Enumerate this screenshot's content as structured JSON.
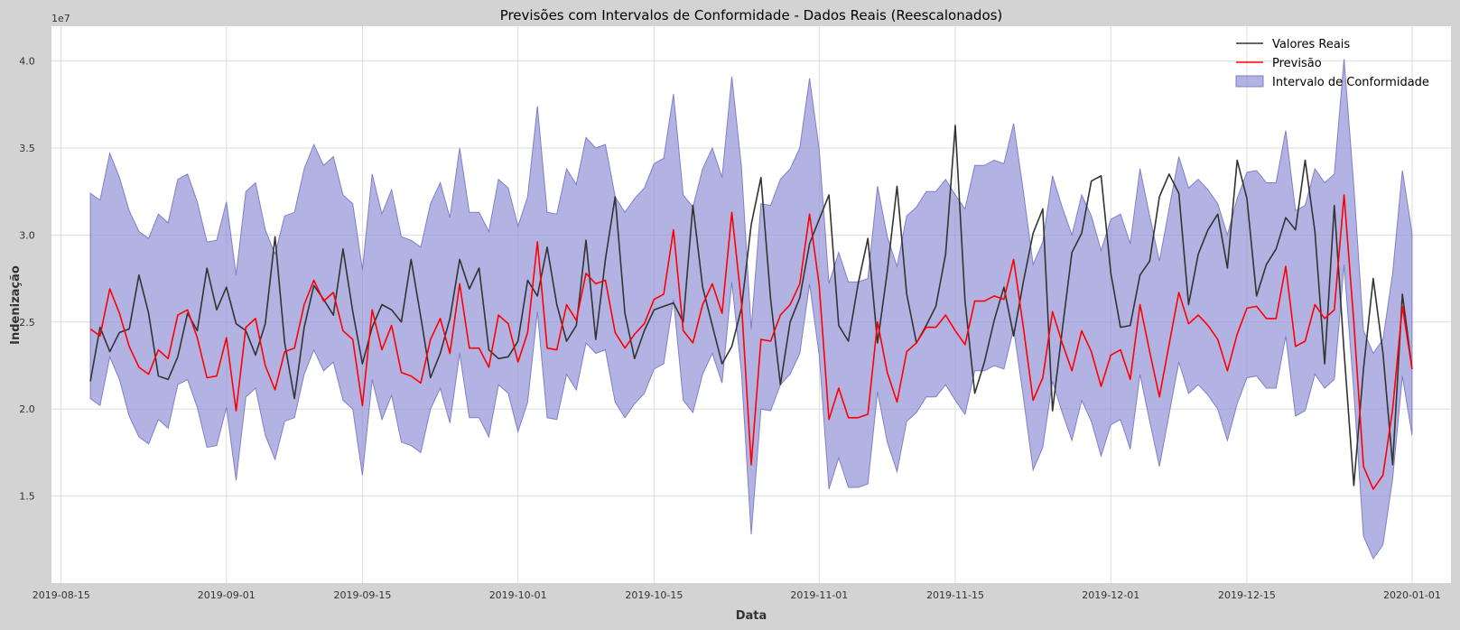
{
  "chart_data": {
    "type": "line",
    "title": "Previsões com Intervalos de Conformidade - Dados Reais (Reescalonados)",
    "xlabel": "Data",
    "ylabel": "Indenização",
    "y_offset_label": "1e7",
    "xlim": [
      "2019-08-14",
      "2020-01-05"
    ],
    "ylim": [
      1.0,
      4.2
    ],
    "x_ticks": [
      "2019-08-15",
      "2019-09-01",
      "2019-09-15",
      "2019-10-01",
      "2019-10-15",
      "2019-11-01",
      "2019-11-15",
      "2019-12-01",
      "2019-12-15",
      "2020-01-01"
    ],
    "x_tick_labels": [
      "2019-08-15",
      "2019-09-01",
      "2019-09-15",
      "2019-10-01",
      "2019-10-15",
      "2019-11-01",
      "2019-11-15",
      "2019-12-01",
      "2019-12-15",
      "2020-01-01"
    ],
    "y_ticks": [
      1.5,
      2.0,
      2.5,
      3.0,
      3.5,
      4.0
    ],
    "y_tick_labels": [
      "1.5",
      "2.0",
      "2.5",
      "3.0",
      "3.5",
      "4.0"
    ],
    "grid": true,
    "legend_position": "top-right",
    "start_date": "2019-08-18",
    "series": [
      {
        "name": "Valores Reais",
        "color": "#333333",
        "values": [
          2.16,
          2.47,
          2.33,
          2.44,
          2.46,
          2.77,
          2.55,
          2.19,
          2.17,
          2.3,
          2.55,
          2.45,
          2.81,
          2.57,
          2.7,
          2.49,
          2.45,
          2.31,
          2.49,
          2.99,
          2.38,
          2.06,
          2.47,
          2.71,
          2.63,
          2.54,
          2.92,
          2.56,
          2.26,
          2.47,
          2.6,
          2.57,
          2.5,
          2.86,
          2.53,
          2.18,
          2.32,
          2.52,
          2.86,
          2.69,
          2.81,
          2.34,
          2.29,
          2.3,
          2.39,
          2.74,
          2.65,
          2.93,
          2.6,
          2.39,
          2.48,
          2.97,
          2.4,
          2.86,
          3.22,
          2.55,
          2.29,
          2.45,
          2.57,
          2.59,
          2.61,
          2.5,
          3.17,
          2.7,
          2.48,
          2.26,
          2.36,
          2.58,
          3.06,
          3.33,
          2.63,
          2.14,
          2.5,
          2.64,
          2.95,
          3.09,
          3.23,
          2.48,
          2.39,
          2.72,
          2.98,
          2.38,
          2.79,
          3.28,
          2.66,
          2.38,
          2.48,
          2.59,
          2.89,
          3.63,
          2.62,
          2.09,
          2.27,
          2.51,
          2.7,
          2.42,
          2.73,
          3.01,
          3.15,
          1.99,
          2.45,
          2.9,
          3.01,
          3.31,
          3.34,
          2.78,
          2.47,
          2.48,
          2.77,
          2.85,
          3.22,
          3.35,
          3.24,
          2.6,
          2.89,
          3.03,
          3.12,
          2.81,
          3.43,
          3.21,
          2.65,
          2.83,
          2.92,
          3.1,
          3.03,
          3.43,
          3.02,
          2.26,
          3.17,
          2.33,
          1.56,
          2.23,
          2.75,
          2.32,
          1.68,
          2.66,
          2.23
        ]
      },
      {
        "name": "Previsão",
        "color": "#ff0000",
        "values": [
          2.46,
          2.42,
          2.69,
          2.55,
          2.36,
          2.24,
          2.2,
          2.34,
          2.29,
          2.54,
          2.57,
          2.41,
          2.18,
          2.19,
          2.41,
          1.99,
          2.47,
          2.52,
          2.25,
          2.11,
          2.33,
          2.35,
          2.6,
          2.74,
          2.62,
          2.67,
          2.45,
          2.4,
          2.02,
          2.57,
          2.34,
          2.48,
          2.21,
          2.19,
          2.15,
          2.4,
          2.52,
          2.32,
          2.72,
          2.35,
          2.35,
          2.24,
          2.54,
          2.49,
          2.27,
          2.44,
          2.96,
          2.35,
          2.34,
          2.6,
          2.51,
          2.78,
          2.72,
          2.74,
          2.44,
          2.35,
          2.43,
          2.49,
          2.63,
          2.66,
          3.03,
          2.45,
          2.38,
          2.6,
          2.72,
          2.55,
          3.13,
          2.61,
          1.68,
          2.4,
          2.39,
          2.54,
          2.6,
          2.72,
          3.12,
          2.71,
          1.94,
          2.12,
          1.95,
          1.95,
          1.97,
          2.5,
          2.21,
          2.04,
          2.33,
          2.38,
          2.47,
          2.47,
          2.54,
          2.45,
          2.37,
          2.62,
          2.62,
          2.65,
          2.63,
          2.86,
          2.47,
          2.05,
          2.18,
          2.56,
          2.38,
          2.22,
          2.45,
          2.33,
          2.13,
          2.31,
          2.34,
          2.17,
          2.6,
          2.33,
          2.07,
          2.37,
          2.67,
          2.49,
          2.54,
          2.48,
          2.4,
          2.22,
          2.43,
          2.58,
          2.59,
          2.52,
          2.52,
          2.82,
          2.36,
          2.39,
          2.6,
          2.52,
          2.57,
          3.23,
          2.5,
          1.67,
          1.54,
          1.62,
          2.0,
          2.59,
          2.23
        ]
      }
    ],
    "interval": {
      "name": "Intervalo de Conformidade",
      "color": "#8f8fd6",
      "lower": [
        2.06,
        2.02,
        2.3,
        2.17,
        1.96,
        1.84,
        1.8,
        1.94,
        1.89,
        2.14,
        2.17,
        2.01,
        1.78,
        1.79,
        2.01,
        1.59,
        2.07,
        2.12,
        1.85,
        1.71,
        1.93,
        1.95,
        2.2,
        2.34,
        2.22,
        2.27,
        2.05,
        2.0,
        1.62,
        2.17,
        1.94,
        2.08,
        1.81,
        1.79,
        1.75,
        2.0,
        2.12,
        1.92,
        2.32,
        1.95,
        1.95,
        1.84,
        2.14,
        2.09,
        1.87,
        2.04,
        2.56,
        1.95,
        1.94,
        2.2,
        2.11,
        2.38,
        2.32,
        2.34,
        2.04,
        1.95,
        2.03,
        2.09,
        2.23,
        2.26,
        2.63,
        2.05,
        1.98,
        2.2,
        2.32,
        2.15,
        2.73,
        2.21,
        1.28,
        2.0,
        1.99,
        2.14,
        2.2,
        2.32,
        2.72,
        2.31,
        1.54,
        1.72,
        1.55,
        1.55,
        1.57,
        2.1,
        1.81,
        1.64,
        1.93,
        1.98,
        2.07,
        2.07,
        2.14,
        2.05,
        1.97,
        2.22,
        2.22,
        2.25,
        2.23,
        2.46,
        2.07,
        1.65,
        1.78,
        2.16,
        1.98,
        1.82,
        2.05,
        1.93,
        1.73,
        1.91,
        1.94,
        1.77,
        2.2,
        1.93,
        1.67,
        1.97,
        2.27,
        2.09,
        2.14,
        2.08,
        2.0,
        1.82,
        2.03,
        2.18,
        2.19,
        2.12,
        2.12,
        2.42,
        1.96,
        1.99,
        2.2,
        2.12,
        2.17,
        2.83,
        2.1,
        1.27,
        1.14,
        1.22,
        1.6,
        2.19,
        1.85
      ],
      "upper": [
        3.24,
        3.2,
        3.47,
        3.33,
        3.14,
        3.02,
        2.98,
        3.12,
        3.07,
        3.32,
        3.35,
        3.19,
        2.96,
        2.97,
        3.19,
        2.77,
        3.25,
        3.3,
        3.03,
        2.89,
        3.11,
        3.13,
        3.38,
        3.52,
        3.4,
        3.45,
        3.23,
        3.18,
        2.8,
        3.35,
        3.12,
        3.26,
        2.99,
        2.97,
        2.93,
        3.18,
        3.3,
        3.1,
        3.5,
        3.13,
        3.13,
        3.02,
        3.32,
        3.27,
        3.05,
        3.22,
        3.74,
        3.13,
        3.12,
        3.38,
        3.29,
        3.56,
        3.5,
        3.52,
        3.22,
        3.13,
        3.21,
        3.27,
        3.41,
        3.44,
        3.81,
        3.23,
        3.16,
        3.38,
        3.5,
        3.33,
        3.91,
        3.39,
        2.46,
        3.18,
        3.17,
        3.32,
        3.38,
        3.5,
        3.9,
        3.49,
        2.72,
        2.9,
        2.73,
        2.73,
        2.75,
        3.28,
        2.99,
        2.82,
        3.11,
        3.16,
        3.25,
        3.25,
        3.32,
        3.23,
        3.15,
        3.4,
        3.4,
        3.43,
        3.41,
        3.64,
        3.25,
        2.83,
        2.96,
        3.34,
        3.16,
        3.0,
        3.23,
        3.11,
        2.91,
        3.09,
        3.12,
        2.95,
        3.38,
        3.11,
        2.85,
        3.15,
        3.45,
        3.27,
        3.32,
        3.26,
        3.18,
        3.0,
        3.21,
        3.36,
        3.37,
        3.3,
        3.3,
        3.6,
        3.14,
        3.17,
        3.38,
        3.3,
        3.35,
        4.01,
        3.28,
        2.45,
        2.32,
        2.4,
        2.78,
        3.37,
        3.01
      ]
    }
  }
}
